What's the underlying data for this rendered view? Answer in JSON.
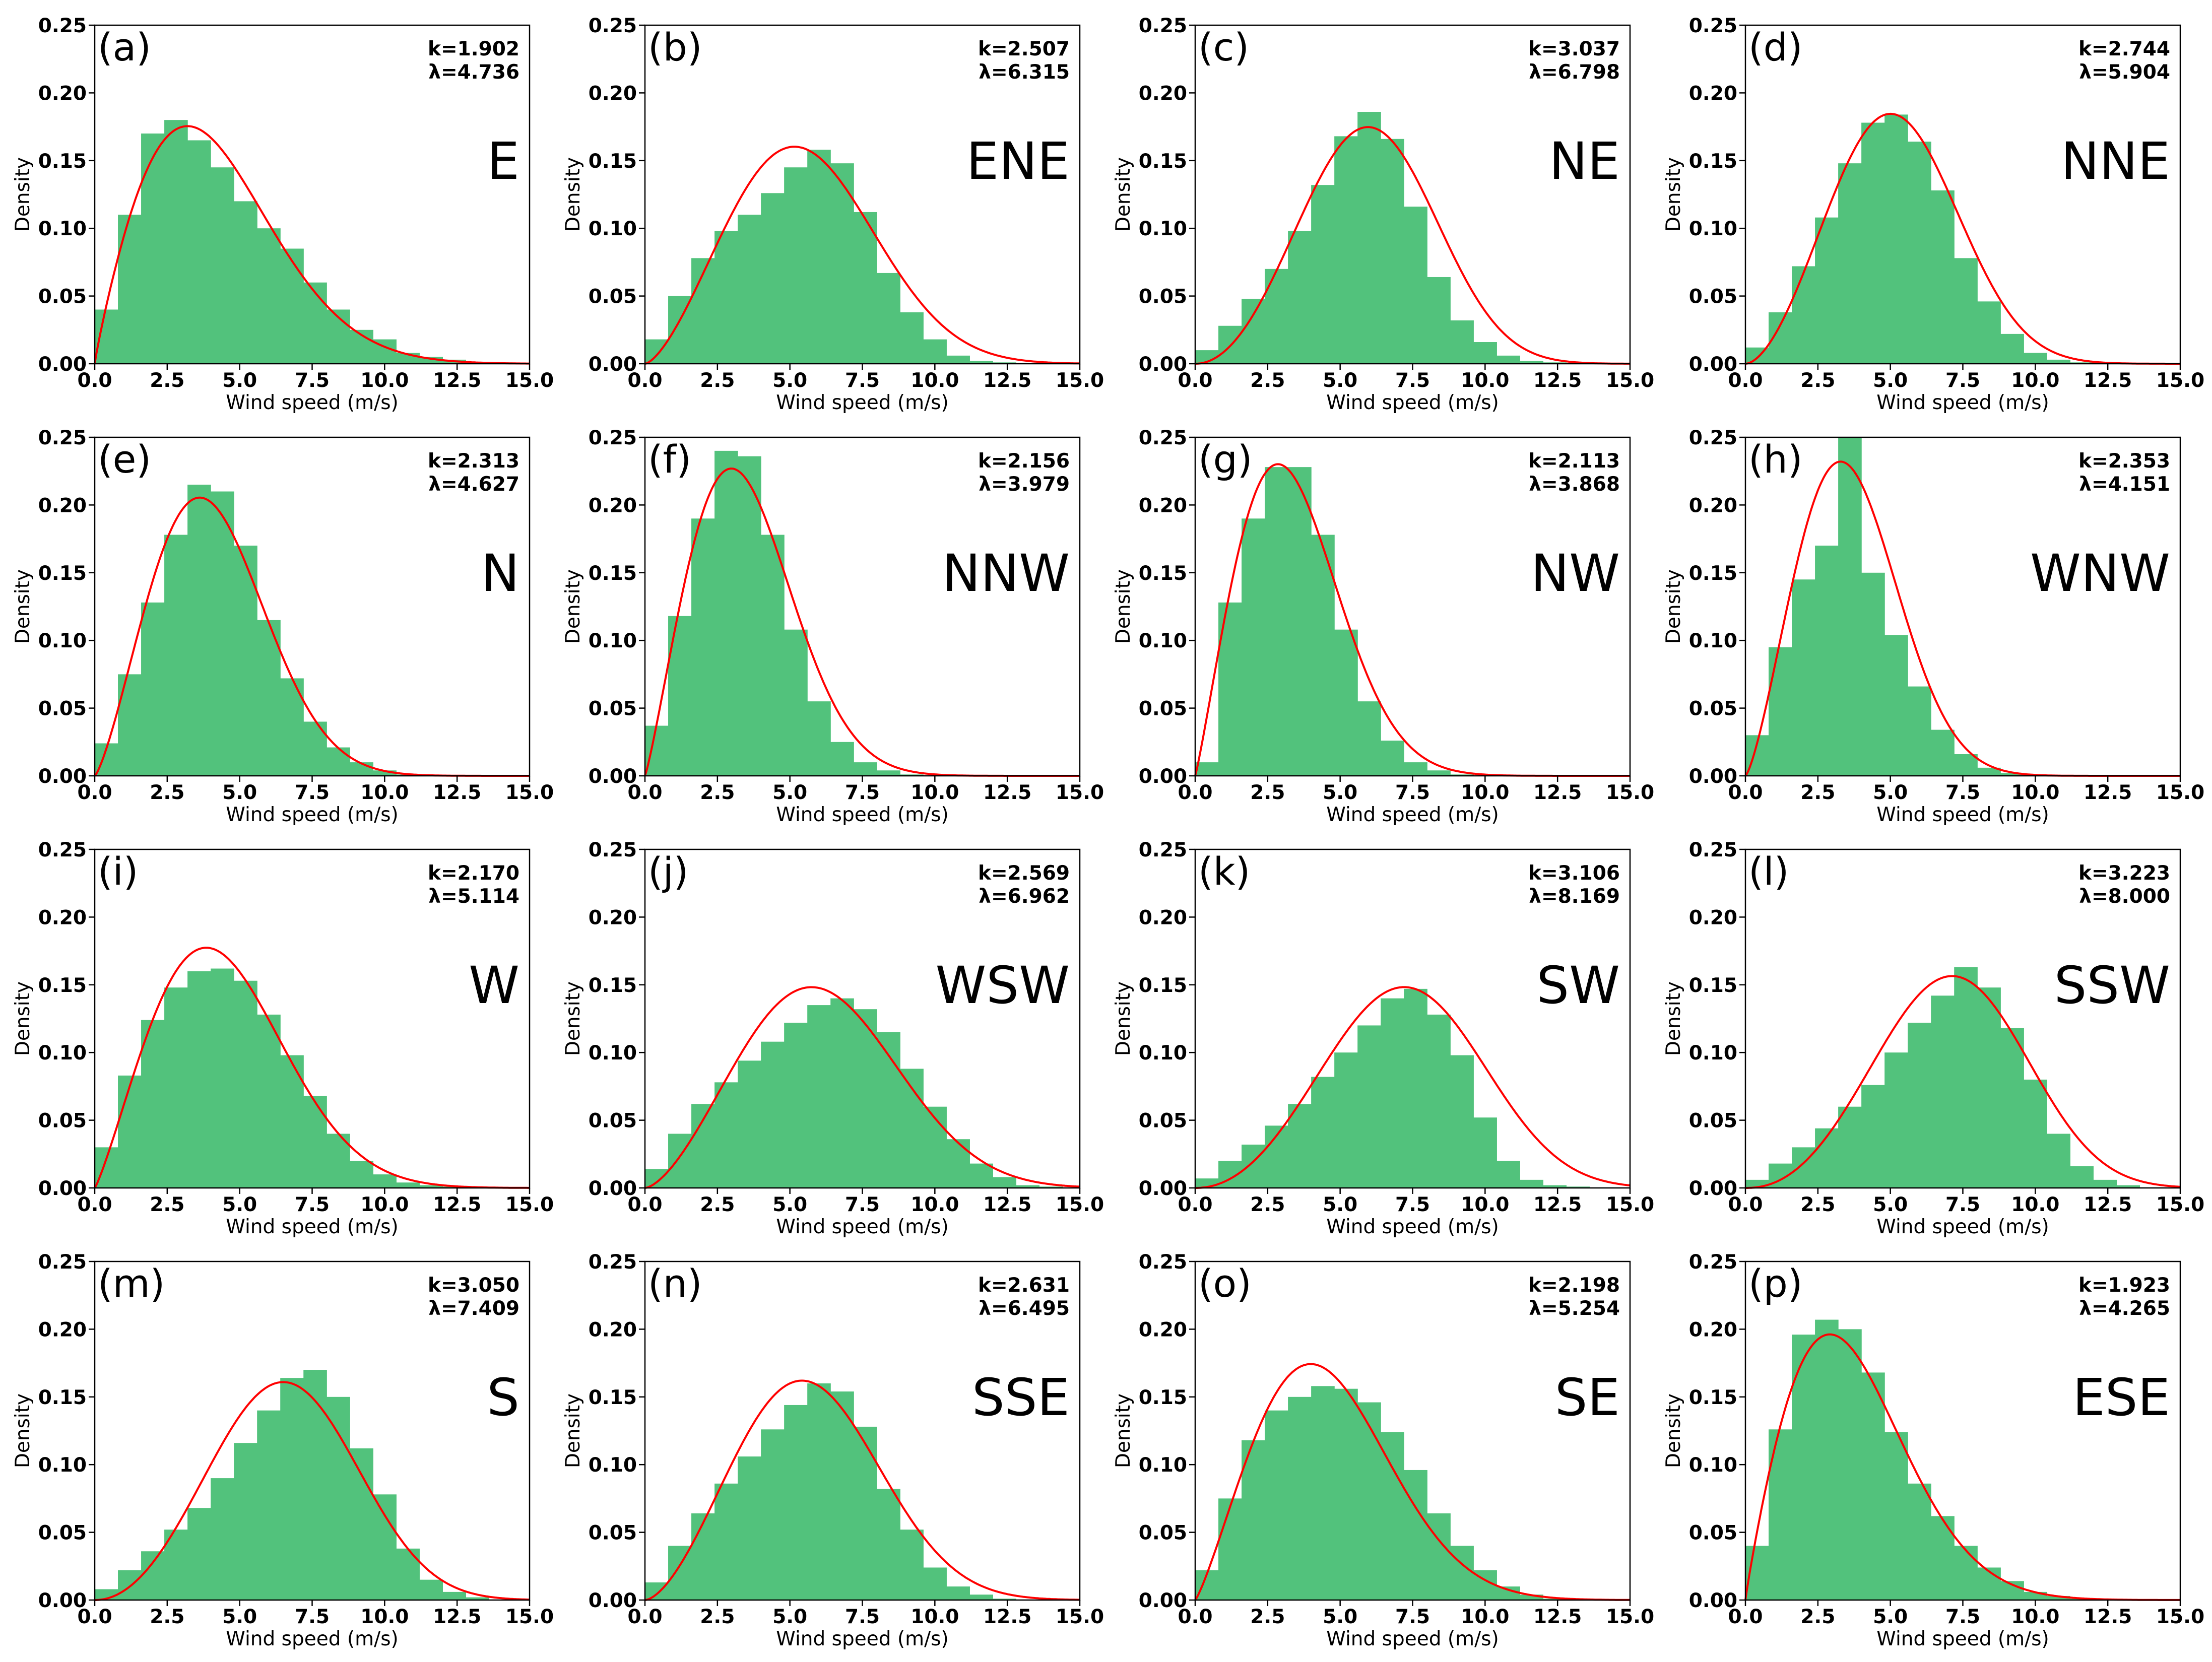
{
  "figure": {
    "colors": {
      "bar": "#52c27c",
      "curve": "#ff0000",
      "axes": "#000000"
    },
    "xlabel": "Wind speed (m/s)",
    "ylabel": "Density",
    "xlim": [
      0,
      15
    ],
    "ylim": [
      0,
      0.25
    ],
    "x_tick_labels": [
      "0.0",
      "2.5",
      "5.0",
      "7.5",
      "10.0",
      "12.5",
      "15.0"
    ],
    "y_tick_labels": [
      "0.00",
      "0.05",
      "0.10",
      "0.15",
      "0.20",
      "0.25"
    ]
  },
  "chart_data": [
    {
      "type": "bar+line",
      "panel": "(a)",
      "direction": "E",
      "k_text": "k=1.902",
      "lambda_text": "λ=4.736",
      "k": 1.902,
      "lambda": 4.736,
      "bin_width": 0.8,
      "values": [
        0.04,
        0.11,
        0.17,
        0.18,
        0.165,
        0.145,
        0.12,
        0.1,
        0.085,
        0.06,
        0.04,
        0.025,
        0.018,
        0.008,
        0.005,
        0.003,
        0.001,
        0.001,
        0.0
      ]
    },
    {
      "type": "bar+line",
      "panel": "(b)",
      "direction": "ENE",
      "k_text": "k=2.507",
      "lambda_text": "λ=6.315",
      "k": 2.507,
      "lambda": 6.315,
      "bin_width": 0.8,
      "values": [
        0.018,
        0.05,
        0.078,
        0.098,
        0.11,
        0.126,
        0.145,
        0.158,
        0.148,
        0.112,
        0.067,
        0.038,
        0.018,
        0.006,
        0.002,
        0.001,
        0.0,
        0.0,
        0.0
      ]
    },
    {
      "type": "bar+line",
      "panel": "(c)",
      "direction": "NE",
      "k_text": "k=3.037",
      "lambda_text": "λ=6.798",
      "k": 3.037,
      "lambda": 6.798,
      "bin_width": 0.8,
      "values": [
        0.01,
        0.028,
        0.048,
        0.07,
        0.098,
        0.132,
        0.168,
        0.186,
        0.166,
        0.116,
        0.064,
        0.032,
        0.016,
        0.006,
        0.002,
        0.001,
        0.0,
        0.0,
        0.0
      ]
    },
    {
      "type": "bar+line",
      "panel": "(d)",
      "direction": "NNE",
      "k_text": "k=2.744",
      "lambda_text": "λ=5.904",
      "k": 2.744,
      "lambda": 5.904,
      "bin_width": 0.8,
      "values": [
        0.012,
        0.038,
        0.072,
        0.108,
        0.148,
        0.178,
        0.184,
        0.164,
        0.128,
        0.078,
        0.046,
        0.022,
        0.008,
        0.003,
        0.001,
        0.0,
        0.0,
        0.0,
        0.0
      ]
    },
    {
      "type": "bar+line",
      "panel": "(e)",
      "direction": "N",
      "k_text": "k=2.313",
      "lambda_text": "λ=4.627",
      "k": 2.313,
      "lambda": 4.627,
      "bin_width": 0.8,
      "values": [
        0.024,
        0.075,
        0.128,
        0.178,
        0.215,
        0.21,
        0.17,
        0.115,
        0.072,
        0.04,
        0.021,
        0.01,
        0.004,
        0.001,
        0.0,
        0.0,
        0.0,
        0.0,
        0.0
      ]
    },
    {
      "type": "bar+line",
      "panel": "(f)",
      "direction": "NNW",
      "k_text": "k=2.156",
      "lambda_text": "λ=3.979",
      "k": 2.156,
      "lambda": 3.979,
      "bin_width": 0.8,
      "values": [
        0.037,
        0.118,
        0.19,
        0.24,
        0.236,
        0.178,
        0.108,
        0.055,
        0.025,
        0.01,
        0.004,
        0.001,
        0.0,
        0.0,
        0.0,
        0.0,
        0.0,
        0.0,
        0.0
      ]
    },
    {
      "type": "bar+line",
      "panel": "(g)",
      "direction": "NW",
      "k_text": "k=2.113",
      "lambda_text": "λ=3.868",
      "k": 2.113,
      "lambda": 3.868,
      "bin_width": 0.8,
      "values": [
        0.01,
        0.128,
        0.19,
        0.228,
        0.228,
        0.178,
        0.108,
        0.055,
        0.026,
        0.01,
        0.004,
        0.001,
        0.0,
        0.0,
        0.0,
        0.0,
        0.0,
        0.0,
        0.0
      ]
    },
    {
      "type": "bar+line",
      "panel": "(h)",
      "direction": "WNW",
      "k_text": "k=2.353",
      "lambda_text": "λ=4.151",
      "k": 2.353,
      "lambda": 4.151,
      "bin_width": 0.8,
      "values": [
        0.03,
        0.095,
        0.145,
        0.17,
        0.25,
        0.15,
        0.104,
        0.066,
        0.034,
        0.016,
        0.006,
        0.002,
        0.001,
        0.0,
        0.0,
        0.0,
        0.0,
        0.0,
        0.0
      ]
    },
    {
      "type": "bar+line",
      "panel": "(i)",
      "direction": "W",
      "k_text": "k=2.170",
      "lambda_text": "λ=5.114",
      "k": 2.17,
      "lambda": 5.114,
      "bin_width": 0.8,
      "values": [
        0.03,
        0.083,
        0.124,
        0.148,
        0.16,
        0.162,
        0.153,
        0.128,
        0.098,
        0.068,
        0.04,
        0.02,
        0.01,
        0.004,
        0.002,
        0.001,
        0.0,
        0.0,
        0.0
      ]
    },
    {
      "type": "bar+line",
      "panel": "(j)",
      "direction": "WSW",
      "k_text": "k=2.569",
      "lambda_text": "λ=6.962",
      "k": 2.569,
      "lambda": 6.962,
      "bin_width": 0.8,
      "values": [
        0.014,
        0.04,
        0.062,
        0.078,
        0.094,
        0.108,
        0.122,
        0.135,
        0.14,
        0.132,
        0.115,
        0.088,
        0.06,
        0.036,
        0.018,
        0.008,
        0.002,
        0.001,
        0.0
      ]
    },
    {
      "type": "bar+line",
      "panel": "(k)",
      "direction": "SW",
      "k_text": "k=3.106",
      "lambda_text": "λ=8.169",
      "k": 3.106,
      "lambda": 8.169,
      "bin_width": 0.8,
      "values": [
        0.007,
        0.02,
        0.032,
        0.046,
        0.062,
        0.082,
        0.1,
        0.12,
        0.14,
        0.147,
        0.128,
        0.098,
        0.052,
        0.02,
        0.006,
        0.002,
        0.001,
        0.0,
        0.0
      ]
    },
    {
      "type": "bar+line",
      "panel": "(l)",
      "direction": "SSW",
      "k_text": "k=3.223",
      "lambda_text": "λ=8.000",
      "k": 3.223,
      "lambda": 8.0,
      "bin_width": 0.8,
      "values": [
        0.006,
        0.018,
        0.03,
        0.044,
        0.06,
        0.076,
        0.1,
        0.122,
        0.142,
        0.163,
        0.148,
        0.118,
        0.08,
        0.04,
        0.016,
        0.006,
        0.002,
        0.0,
        0.0
      ]
    },
    {
      "type": "bar+line",
      "panel": "(m)",
      "direction": "S",
      "k_text": "k=3.050",
      "lambda_text": "λ=7.409",
      "k": 3.05,
      "lambda": 7.409,
      "bin_width": 0.8,
      "values": [
        0.008,
        0.022,
        0.036,
        0.052,
        0.068,
        0.09,
        0.116,
        0.14,
        0.164,
        0.17,
        0.15,
        0.112,
        0.078,
        0.038,
        0.015,
        0.006,
        0.002,
        0.0,
        0.0
      ]
    },
    {
      "type": "bar+line",
      "panel": "(n)",
      "direction": "SSE",
      "k_text": "k=2.631",
      "lambda_text": "λ=6.495",
      "k": 2.631,
      "lambda": 6.495,
      "bin_width": 0.8,
      "values": [
        0.013,
        0.04,
        0.064,
        0.086,
        0.106,
        0.126,
        0.144,
        0.16,
        0.154,
        0.128,
        0.082,
        0.052,
        0.024,
        0.01,
        0.004,
        0.001,
        0.0,
        0.0,
        0.0
      ]
    },
    {
      "type": "bar+line",
      "panel": "(o)",
      "direction": "SE",
      "k_text": "k=2.198",
      "lambda_text": "λ=5.254",
      "k": 2.198,
      "lambda": 5.254,
      "bin_width": 0.8,
      "values": [
        0.022,
        0.075,
        0.118,
        0.14,
        0.15,
        0.158,
        0.156,
        0.146,
        0.124,
        0.096,
        0.064,
        0.04,
        0.022,
        0.01,
        0.004,
        0.001,
        0.0,
        0.0,
        0.0
      ]
    },
    {
      "type": "bar+line",
      "panel": "(p)",
      "direction": "ESE",
      "k_text": "k=1.923",
      "lambda_text": "λ=4.265",
      "k": 1.923,
      "lambda": 4.265,
      "bin_width": 0.8,
      "values": [
        0.04,
        0.126,
        0.196,
        0.207,
        0.2,
        0.168,
        0.124,
        0.086,
        0.062,
        0.04,
        0.024,
        0.014,
        0.006,
        0.003,
        0.001,
        0.0,
        0.0,
        0.0,
        0.0
      ]
    }
  ]
}
